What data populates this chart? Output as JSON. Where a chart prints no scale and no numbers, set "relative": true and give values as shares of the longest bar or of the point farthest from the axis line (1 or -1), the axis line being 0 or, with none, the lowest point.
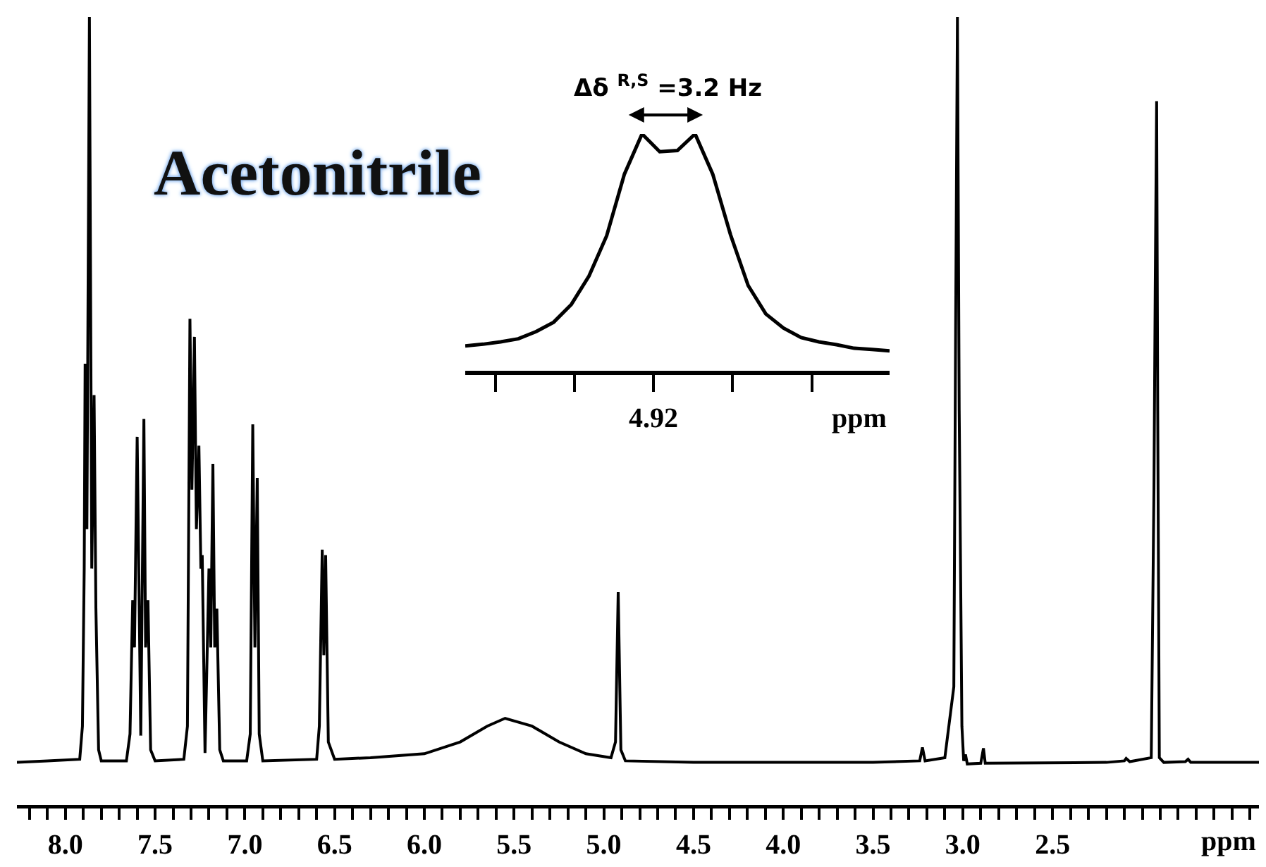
{
  "chart_data": [
    {
      "type": "line",
      "title": "Acetonitrile",
      "xlabel": "ppm",
      "relative": true,
      "xlim": [
        8.27,
        1.35
      ],
      "xticks": [
        {
          "value": 8.2,
          "label": null
        },
        {
          "value": 8.1,
          "label": null
        },
        {
          "value": 8,
          "label": "8.0"
        },
        {
          "value": 7.9,
          "label": null
        },
        {
          "value": 7.8,
          "label": null
        },
        {
          "value": 7.7,
          "label": null
        },
        {
          "value": 7.6,
          "label": null
        },
        7.5,
        {
          "value": 7.4,
          "label": null
        },
        {
          "value": 7.3,
          "label": null
        },
        {
          "value": 7.2,
          "label": null
        },
        {
          "value": 7.1,
          "label": null
        },
        {
          "value": 7,
          "label": "7.0"
        },
        {
          "value": 6.9,
          "label": null
        },
        {
          "value": 6.8,
          "label": null
        },
        {
          "value": 6.7,
          "label": null
        },
        {
          "value": 6.6,
          "label": null
        },
        6.5,
        {
          "value": 6.4,
          "label": null
        },
        {
          "value": 6.3,
          "label": null
        },
        {
          "value": 6.2,
          "label": null
        },
        {
          "value": 6.1,
          "label": null
        },
        {
          "value": 6,
          "label": "6.0"
        },
        {
          "value": 5.9,
          "label": null
        },
        {
          "value": 5.8,
          "label": null
        },
        {
          "value": 5.7,
          "label": null
        },
        {
          "value": 5.6,
          "label": null
        },
        5.5,
        {
          "value": 5.4,
          "label": null
        },
        {
          "value": 5.3,
          "label": null
        },
        {
          "value": 5.2,
          "label": null
        },
        {
          "value": 5.1,
          "label": null
        },
        {
          "value": 5,
          "label": "5.0"
        },
        {
          "value": 4.9,
          "label": null
        },
        {
          "value": 4.8,
          "label": null
        },
        {
          "value": 4.7,
          "label": null
        },
        {
          "value": 4.6,
          "label": null
        },
        4.5,
        {
          "value": 4.4,
          "label": null
        },
        {
          "value": 4.3,
          "label": null
        },
        {
          "value": 4.2,
          "label": null
        },
        {
          "value": 4.1,
          "label": null
        },
        {
          "value": 4,
          "label": "4.0"
        },
        {
          "value": 3.9,
          "label": null
        },
        {
          "value": 3.8,
          "label": null
        },
        {
          "value": 3.7,
          "label": null
        },
        {
          "value": 3.6,
          "label": null
        },
        3.5,
        {
          "value": 3.4,
          "label": null
        },
        {
          "value": 3.3,
          "label": null
        },
        {
          "value": 3.2,
          "label": null
        },
        {
          "value": 3.1,
          "label": null
        },
        {
          "value": 3,
          "label": "3.0"
        },
        {
          "value": 2.9,
          "label": null
        },
        {
          "value": 2.8,
          "label": null
        },
        {
          "value": 2.7,
          "label": null
        },
        {
          "value": 2.6,
          "label": null
        },
        2.5,
        {
          "value": 2.4,
          "label": null
        },
        {
          "value": 2.3,
          "label": null
        },
        {
          "value": 2.2,
          "label": null
        },
        {
          "value": 2.1,
          "label": null
        },
        {
          "value": 2,
          "label": null
        },
        {
          "value": 1.9,
          "label": null
        },
        {
          "value": 1.8,
          "label": null
        },
        {
          "value": 1.7,
          "label": null
        },
        {
          "value": 1.6,
          "label": null
        },
        {
          "value": 1.5,
          "label": null
        },
        {
          "value": 1.4,
          "label": null
        }
      ],
      "x": [
        8.27,
        8.1,
        7.92,
        7.905,
        7.895,
        7.89,
        7.88,
        7.866,
        7.853,
        7.84,
        7.83,
        7.815,
        7.8,
        7.66,
        7.64,
        7.625,
        7.615,
        7.6,
        7.58,
        7.5625,
        7.553,
        7.54,
        7.525,
        7.5,
        7.34,
        7.32,
        7.306,
        7.295,
        7.281,
        7.27,
        7.256,
        7.245,
        7.2375,
        7.222,
        7.2,
        7.19,
        7.178,
        7.168,
        7.156,
        7.14,
        7.12,
        6.99,
        6.97,
        6.956,
        6.944,
        6.931,
        6.92,
        6.9,
        6.6,
        6.585,
        6.569,
        6.56,
        6.55,
        6.535,
        6.5,
        6.3,
        6.0,
        5.8,
        5.65,
        5.55,
        5.4,
        5.25,
        5.1,
        4.96,
        4.935,
        4.92,
        4.905,
        4.88,
        4.5,
        3.5,
        3.24,
        3.225,
        3.21,
        3.1,
        3.05,
        3.04,
        3.03,
        3.02,
        3.005,
        2.995,
        2.985,
        2.975,
        2.9,
        2.885,
        2.875,
        2.2,
        2.1,
        2.09,
        2.07,
        1.95,
        1.935,
        1.928,
        1.92,
        1.914,
        1.905,
        1.88,
        1.76,
        1.745,
        1.73,
        1.35
      ],
      "series": [
        {
          "color": "#000000",
          "values": [
            0.054,
            0.056,
            0.058,
            0.1,
            0.3,
            0.56,
            0.35,
            1.0,
            0.3,
            0.52,
            0.25,
            0.07,
            0.056,
            0.056,
            0.09,
            0.26,
            0.2,
            0.467,
            0.088,
            0.49,
            0.2,
            0.26,
            0.07,
            0.056,
            0.058,
            0.1,
            0.617,
            0.4,
            0.594,
            0.35,
            0.456,
            0.3,
            0.317,
            0.066,
            0.3,
            0.2,
            0.433,
            0.2,
            0.249,
            0.07,
            0.056,
            0.056,
            0.09,
            0.483,
            0.2,
            0.415,
            0.09,
            0.056,
            0.058,
            0.1,
            0.324,
            0.19,
            0.317,
            0.08,
            0.058,
            0.06,
            0.065,
            0.08,
            0.1,
            0.11,
            0.1,
            0.08,
            0.065,
            0.06,
            0.08,
            0.27,
            0.07,
            0.056,
            0.054,
            0.054,
            0.056,
            0.073,
            0.056,
            0.06,
            0.15,
            0.6,
            1.0,
            0.5,
            0.1,
            0.056,
            0.064,
            0.052,
            0.053,
            0.072,
            0.053,
            0.054,
            0.056,
            0.059,
            0.055,
            0.06,
            0.4,
            0.65,
            0.893,
            0.5,
            0.06,
            0.054,
            0.055,
            0.058,
            0.054,
            0.054
          ]
        }
      ]
    },
    {
      "type": "line",
      "xlabel": "ppm",
      "relative": true,
      "annotations": [
        "Δδ $^{R,S}$ =3.2 Hz",
        "4.92"
      ],
      "categories": [
        null,
        null,
        null,
        null,
        null,
        null,
        null,
        null,
        null,
        null,
        null,
        null,
        null,
        null,
        null,
        null,
        null,
        null,
        null,
        null,
        null,
        null,
        null,
        null,
        null
      ],
      "series": [
        {
          "color": "#000000",
          "values": [
            0.105,
            0.112,
            0.122,
            0.135,
            0.165,
            0.205,
            0.28,
            0.4,
            0.57,
            0.83,
            1.0,
            0.925,
            0.93,
            1.0,
            0.83,
            0.575,
            0.36,
            0.24,
            0.18,
            0.14,
            0.122,
            0.11,
            0.095,
            0.09,
            0.084
          ]
        }
      ]
    }
  ]
}
